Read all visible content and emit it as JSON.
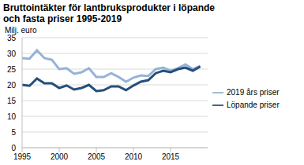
{
  "chart_data": {
    "type": "line",
    "title": "Bruttointäkter för lantbruksprodukter i löpande och fasta priser 1995-2019",
    "ylabel": "Milj. euro",
    "x": [
      1995,
      1996,
      1997,
      1998,
      1999,
      2000,
      2001,
      2002,
      2003,
      2004,
      2005,
      2006,
      2007,
      2008,
      2009,
      2010,
      2011,
      2012,
      2013,
      2014,
      2015,
      2016,
      2017,
      2018,
      2019
    ],
    "series": [
      {
        "name": "2019 års priser",
        "color": "#95b3d7",
        "values": [
          28.5,
          28.3,
          31,
          28.5,
          28,
          25,
          25.3,
          23.5,
          24,
          25.3,
          22.5,
          22.5,
          23.7,
          22.5,
          21,
          22.3,
          23,
          22.8,
          25,
          25.5,
          24.5,
          25.3,
          26.5,
          25,
          26
        ]
      },
      {
        "name": "Löpande priser",
        "color": "#254f7a",
        "values": [
          20,
          19.7,
          22,
          20.5,
          20.5,
          19,
          19.8,
          18.5,
          19,
          20,
          18,
          18.3,
          19.5,
          19.5,
          18.3,
          19.8,
          21,
          21.5,
          23.7,
          24.5,
          24,
          25,
          25.5,
          24.5,
          25.8
        ]
      }
    ],
    "xlim": [
      1995,
      2020
    ],
    "xticks": [
      1995,
      2000,
      2005,
      2010,
      2015
    ],
    "ylim": [
      0,
      35
    ],
    "yticks": [
      0,
      5,
      10,
      15,
      20,
      25,
      30,
      35
    ],
    "grid": true,
    "legend": "right"
  }
}
